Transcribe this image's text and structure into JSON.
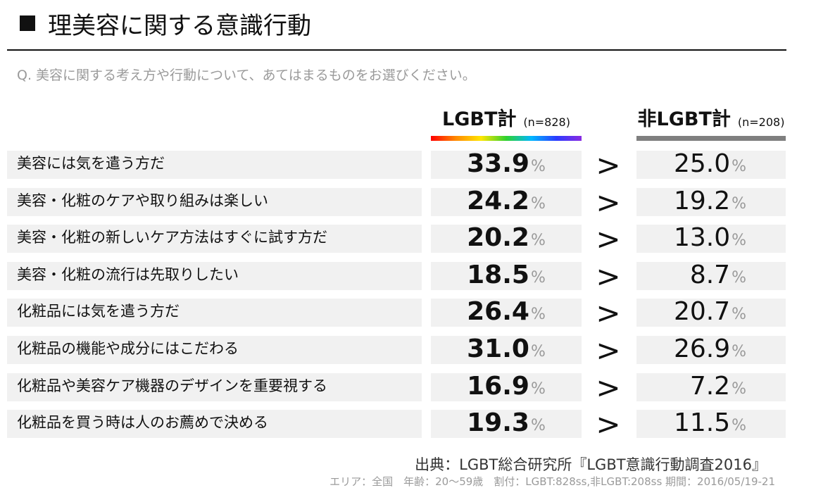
{
  "title": "理美容に関する意識行動",
  "question": "Q. 美容に関する考え方や行動について、あてはまるものをお選びください。",
  "columns": {
    "lgbt": {
      "label": "LGBT計",
      "n": "(n=828)"
    },
    "non_lgbt": {
      "label": "非LGBT計",
      "n": "(n=208)"
    }
  },
  "comparison_symbol": ">",
  "percent_sign": "%",
  "source": "出典：LGBT総合研究所『LGBT意識行動調査2016』",
  "footnote": "エリア：全国　年齢：20～59歳　割付：LGBT:828ss,非LGBT:208ss 期間：2016/05/19-21",
  "colors": {
    "row_bg": "#f1f1f1",
    "non_lgbt_bar": "#7f7f7f",
    "percent": "#9a9a9a"
  },
  "chart_data": {
    "type": "table",
    "title": "理美容に関する意識行動",
    "categories": [
      "美容には気を遣う方だ",
      "美容・化粧のケアや取り組みは楽しい",
      "美容・化粧の新しいケア方法はすぐに試す方だ",
      "美容・化粧の流行は先取りしたい",
      "化粧品には気を遣う方だ",
      "化粧品の機能や成分にはこだわる",
      "化粧品や美容ケア機器のデザインを重要視する",
      "化粧品を買う時は人のお薦めで決める"
    ],
    "series": [
      {
        "name": "LGBT計",
        "values": [
          "33.9",
          "24.2",
          "20.2",
          "18.5",
          "26.4",
          "31.0",
          "16.9",
          "19.3"
        ]
      },
      {
        "name": "非LGBT計",
        "values": [
          "25.0",
          "19.2",
          "13.0",
          "8.7",
          "20.7",
          "26.9",
          "7.2",
          "11.5"
        ]
      }
    ],
    "unit": "%"
  }
}
